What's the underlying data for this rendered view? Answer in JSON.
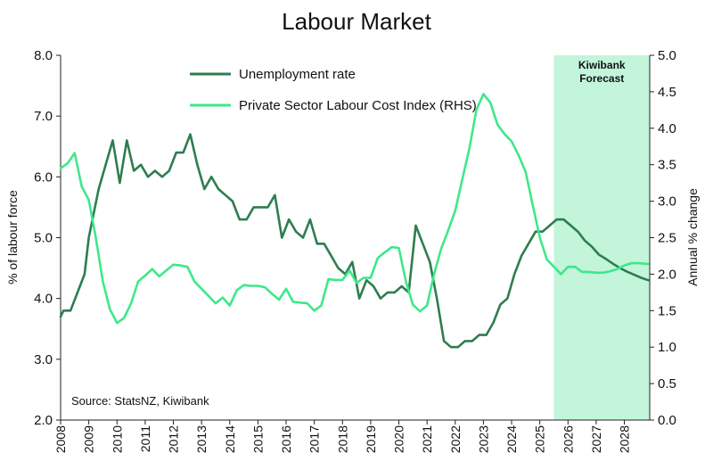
{
  "chart_data": {
    "type": "line",
    "title": "Labour Market",
    "ylabel_left": "% of labour force",
    "ylabel_right": "Annual % change",
    "ylim_left": [
      2.0,
      8.0
    ],
    "ylim_right": [
      0.0,
      5.0
    ],
    "xlim": [
      2008.0,
      2028.9
    ],
    "left_ticks": [
      "2.0",
      "3.0",
      "4.0",
      "5.0",
      "6.0",
      "7.0",
      "8.0"
    ],
    "right_ticks": [
      "0.0",
      "0.5",
      "1.0",
      "1.5",
      "2.0",
      "2.5",
      "3.0",
      "3.5",
      "4.0",
      "4.5",
      "5.0"
    ],
    "x_ticks": [
      "2008",
      "2009",
      "2010",
      "2011",
      "2012",
      "2013",
      "2014",
      "2015",
      "2016",
      "2017",
      "2018",
      "2019",
      "2020",
      "2021",
      "2022",
      "2023",
      "2024",
      "2025",
      "2026",
      "2027",
      "2028"
    ],
    "forecast_label_line1": "Kiwibank",
    "forecast_label_line2": "Forecast",
    "forecast_start": 2025.5,
    "source": "Source: StatsNZ, Kiwibank",
    "series": [
      {
        "name": "Unemployment rate",
        "axis": "left",
        "color": "#2e7d4f",
        "x": [
          2008.0,
          2008.1,
          2008.35,
          2008.6,
          2008.85,
          2009.0,
          2009.35,
          2009.6,
          2009.85,
          2010.1,
          2010.35,
          2010.6,
          2010.85,
          2011.1,
          2011.35,
          2011.6,
          2011.85,
          2012.1,
          2012.35,
          2012.6,
          2012.85,
          2013.1,
          2013.35,
          2013.6,
          2013.85,
          2014.1,
          2014.35,
          2014.6,
          2014.85,
          2015.1,
          2015.35,
          2015.6,
          2015.85,
          2016.1,
          2016.35,
          2016.6,
          2016.85,
          2017.1,
          2017.35,
          2017.6,
          2017.85,
          2018.1,
          2018.35,
          2018.6,
          2018.85,
          2019.1,
          2019.35,
          2019.6,
          2019.85,
          2020.1,
          2020.35,
          2020.6,
          2020.85,
          2021.1,
          2021.35,
          2021.6,
          2021.85,
          2022.1,
          2022.35,
          2022.6,
          2022.85,
          2023.1,
          2023.35,
          2023.6,
          2023.85,
          2024.1,
          2024.35,
          2024.6,
          2024.85,
          2025.1,
          2025.35,
          2025.6,
          2025.85,
          2026.1,
          2026.35,
          2026.6,
          2026.85,
          2027.1,
          2027.35,
          2027.6,
          2027.85,
          2028.1,
          2028.35,
          2028.6,
          2028.85
        ],
        "values": [
          3.7,
          3.8,
          3.8,
          4.1,
          4.4,
          5.0,
          5.8,
          6.2,
          6.6,
          5.9,
          6.6,
          6.1,
          6.2,
          6.0,
          6.1,
          6.0,
          6.1,
          6.4,
          6.4,
          6.7,
          6.2,
          5.8,
          6.0,
          5.8,
          5.7,
          5.6,
          5.3,
          5.3,
          5.5,
          5.5,
          5.5,
          5.7,
          5.0,
          5.3,
          5.1,
          5.0,
          5.3,
          4.9,
          4.9,
          4.7,
          4.5,
          4.4,
          4.6,
          4.0,
          4.3,
          4.2,
          4.0,
          4.1,
          4.1,
          4.2,
          4.1,
          5.2,
          4.9,
          4.6,
          4.0,
          3.3,
          3.2,
          3.2,
          3.3,
          3.3,
          3.4,
          3.4,
          3.6,
          3.9,
          4.0,
          4.4,
          4.7,
          4.9,
          5.1,
          5.1,
          5.2,
          5.3,
          5.3,
          5.2,
          5.1,
          4.95,
          4.85,
          4.72,
          4.65,
          4.57,
          4.5,
          4.44,
          4.39,
          4.34,
          4.3
        ]
      },
      {
        "name": "Private Sector Labour Cost Index (RHS)",
        "axis": "right",
        "color": "#3ee88a",
        "x": [
          2008.0,
          2008.25,
          2008.5,
          2008.75,
          2009.0,
          2009.25,
          2009.5,
          2009.75,
          2010.0,
          2010.25,
          2010.5,
          2010.75,
          2011.0,
          2011.25,
          2011.5,
          2011.75,
          2012.0,
          2012.25,
          2012.5,
          2012.75,
          2013.0,
          2013.25,
          2013.5,
          2013.75,
          2014.0,
          2014.25,
          2014.5,
          2014.75,
          2015.0,
          2015.25,
          2015.5,
          2015.75,
          2016.0,
          2016.25,
          2016.5,
          2016.75,
          2017.0,
          2017.25,
          2017.5,
          2017.75,
          2018.0,
          2018.25,
          2018.5,
          2018.75,
          2019.0,
          2019.25,
          2019.5,
          2019.75,
          2020.0,
          2020.25,
          2020.5,
          2020.75,
          2021.0,
          2021.25,
          2021.5,
          2021.75,
          2022.0,
          2022.25,
          2022.5,
          2022.75,
          2023.0,
          2023.25,
          2023.5,
          2023.75,
          2024.0,
          2024.25,
          2024.5,
          2024.75,
          2025.0,
          2025.25,
          2025.5,
          2025.75,
          2026.0,
          2026.25,
          2026.5,
          2026.75,
          2027.0,
          2027.25,
          2027.5,
          2027.75,
          2028.0,
          2028.25,
          2028.5,
          2028.85
        ],
        "values": [
          3.45,
          3.52,
          3.66,
          3.2,
          3.02,
          2.5,
          1.9,
          1.52,
          1.33,
          1.4,
          1.6,
          1.9,
          1.98,
          2.07,
          1.97,
          2.05,
          2.13,
          2.12,
          2.1,
          1.9,
          1.8,
          1.7,
          1.6,
          1.68,
          1.57,
          1.78,
          1.85,
          1.84,
          1.84,
          1.82,
          1.73,
          1.65,
          1.8,
          1.62,
          1.61,
          1.6,
          1.5,
          1.57,
          1.93,
          1.92,
          1.92,
          2.05,
          1.88,
          1.95,
          1.95,
          2.22,
          2.3,
          2.37,
          2.36,
          1.9,
          1.58,
          1.49,
          1.57,
          2.0,
          2.35,
          2.6,
          2.87,
          3.3,
          3.72,
          4.25,
          4.47,
          4.35,
          4.05,
          3.92,
          3.82,
          3.63,
          3.4,
          2.95,
          2.5,
          2.2,
          2.1,
          2.0,
          2.1,
          2.1,
          2.03,
          2.03,
          2.02,
          2.02,
          2.04,
          2.07,
          2.12,
          2.15,
          2.15,
          2.14
        ]
      }
    ]
  }
}
